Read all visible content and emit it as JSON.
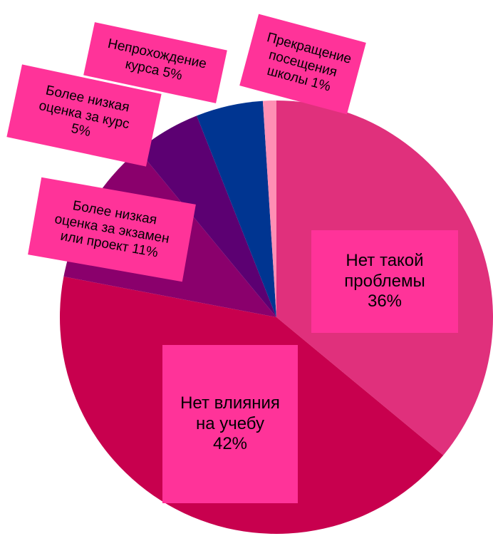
{
  "chart_data": {
    "type": "pie",
    "categories": [
      "Нет такой проблемы",
      "Нет влияния на учебу",
      "Более низкая оценка за экзамен или проект",
      "Более низкая оценка за курс",
      "Непрохождение курса",
      "Прекращение посещения школы"
    ],
    "values": [
      36,
      42,
      11,
      5,
      5,
      1
    ],
    "value_labels": [
      "36%",
      "42%",
      "11%",
      "5%",
      "5%",
      "1%"
    ],
    "colors": [
      "#e0307c",
      "#c8004e",
      "#8a006c",
      "#5c0072",
      "#003591",
      "#ff8fb4"
    ],
    "label_color": "#ff3399"
  }
}
